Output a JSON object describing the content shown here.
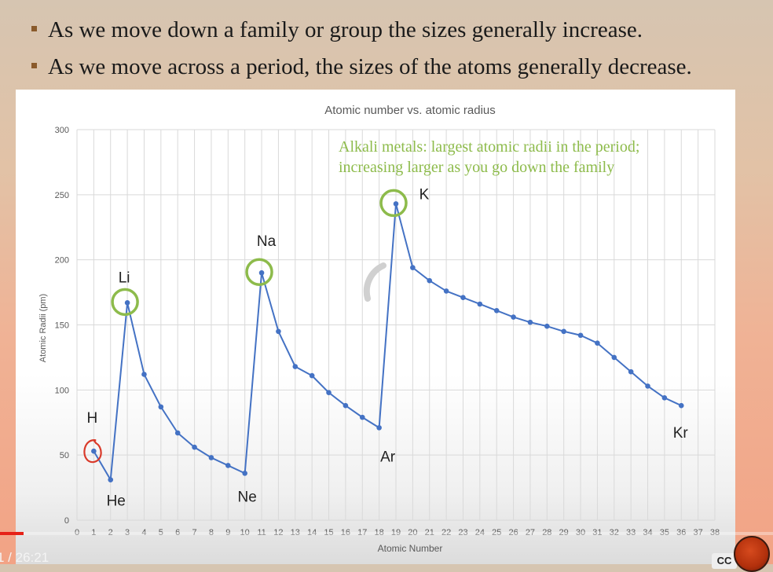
{
  "slide": {
    "bullets": [
      "As we move down a family or group the sizes generally increase.",
      "As we move across a period, the sizes of the atoms generally decrease."
    ]
  },
  "chart_data": {
    "type": "line",
    "title": "Atomic number vs. atomic radius",
    "xlabel": "Atomic Number",
    "ylabel": "Atomic Radii (pm)",
    "xlim": [
      0,
      38
    ],
    "ylim": [
      0,
      300
    ],
    "x_ticks": [
      0,
      1,
      2,
      3,
      4,
      5,
      6,
      7,
      8,
      9,
      10,
      11,
      12,
      13,
      14,
      15,
      16,
      17,
      18,
      19,
      20,
      21,
      22,
      23,
      24,
      25,
      26,
      27,
      28,
      29,
      30,
      31,
      32,
      33,
      34,
      35,
      36,
      37,
      38
    ],
    "y_ticks": [
      0,
      50,
      100,
      150,
      200,
      250,
      300
    ],
    "grid": "vertical and horizontal",
    "series": [
      {
        "x": [
          1,
          2,
          3,
          4,
          5,
          6,
          7,
          8,
          9,
          10,
          11,
          12,
          13,
          14,
          15,
          16,
          17,
          18,
          19,
          20,
          21,
          22,
          23,
          24,
          25,
          26,
          27,
          28,
          29,
          30,
          31,
          32,
          33,
          34,
          35,
          36
        ],
        "values": [
          53,
          31,
          167,
          112,
          87,
          67,
          56,
          48,
          42,
          36,
          190,
          145,
          118,
          111,
          98,
          88,
          79,
          71,
          243,
          194,
          184,
          176,
          171,
          166,
          161,
          156,
          152,
          149,
          145,
          142,
          136,
          125,
          114,
          103,
          94,
          88
        ],
        "color": "#4472c4"
      }
    ],
    "element_labels": [
      {
        "text": "H",
        "x": 1,
        "y": 53
      },
      {
        "text": "He",
        "x": 2,
        "y": 31
      },
      {
        "text": "Li",
        "x": 3,
        "y": 167
      },
      {
        "text": "Ne",
        "x": 10,
        "y": 36
      },
      {
        "text": "Na",
        "x": 11,
        "y": 190
      },
      {
        "text": "Ar",
        "x": 18,
        "y": 71
      },
      {
        "text": "K",
        "x": 19,
        "y": 243
      },
      {
        "text": "Kr",
        "x": 36,
        "y": 88
      }
    ],
    "annotation": {
      "lines": [
        "Alkali metals: largest atomic radii in the period;",
        "increasing larger as you go down the family"
      ],
      "color": "#8dbb4b"
    },
    "highlight_circles": [
      {
        "x": 3,
        "y": 167,
        "color": "#8dbb4b"
      },
      {
        "x": 11,
        "y": 190,
        "color": "#8dbb4b"
      },
      {
        "x": 19,
        "y": 243,
        "color": "#8dbb4b"
      },
      {
        "x": 1,
        "y": 53,
        "color": "#d93a2a"
      }
    ]
  },
  "player": {
    "time": "1 / 26:21",
    "progress": 0.03,
    "cc_label": "CC"
  }
}
